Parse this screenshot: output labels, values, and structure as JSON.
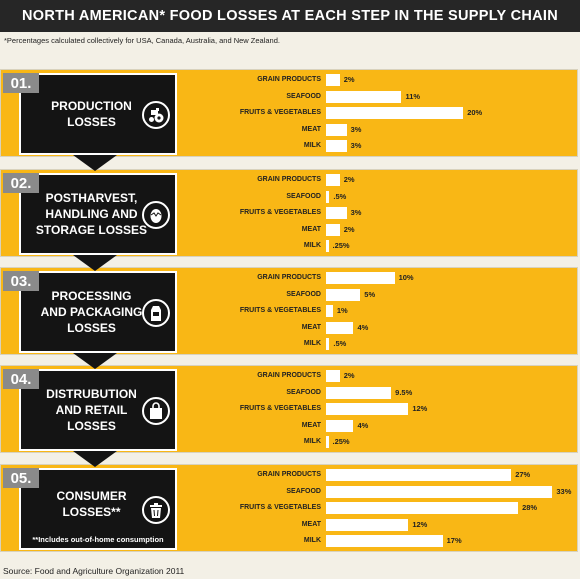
{
  "title": "NORTH AMERICAN* FOOD LOSSES AT EACH STEP IN THE SUPPLY CHAIN",
  "footnote": "*Percentages calculated collectively for USA, Canada, Australia, and New Zealand.",
  "source": "Source: Food and Agriculture Organization 2011",
  "colors": {
    "panel": "#f9b715",
    "box": "#141414",
    "bar": "#ffffff",
    "header": "#262626",
    "number_box": "#8a8a8a"
  },
  "stages": [
    {
      "number": "01.",
      "title": "PRODUCTION\nLOSSES",
      "note": "",
      "icon": "tractor-icon"
    },
    {
      "number": "02.",
      "title": "POSTHARVEST,\nHANDLING AND\nSTORAGE LOSSES",
      "note": "",
      "icon": "egg-icon"
    },
    {
      "number": "03.",
      "title": "PROCESSING\nAND PACKAGING\nLOSSES",
      "note": "",
      "icon": "milk-carton-icon"
    },
    {
      "number": "04.",
      "title": "DISTRUBUTION\nAND RETAIL\nLOSSES",
      "note": "",
      "icon": "shopping-bag-icon"
    },
    {
      "number": "05.",
      "title": "CONSUMER\nLOSSES**",
      "note": "**Includes out-of-home consumption",
      "icon": "trash-can-icon"
    }
  ],
  "chart_data": [
    {
      "type": "bar",
      "title": "PRODUCTION LOSSES",
      "categories": [
        "GRAIN PRODUCTS",
        "SEAFOOD",
        "FRUITS & VEGETABLES",
        "MEAT",
        "MILK"
      ],
      "values": [
        2,
        11,
        20,
        3,
        3
      ],
      "value_labels": [
        "2%",
        "11%",
        "20%",
        "3%",
        "3%"
      ],
      "unit": "%",
      "xlim": [
        0,
        33
      ]
    },
    {
      "type": "bar",
      "title": "POSTHARVEST, HANDLING AND STORAGE LOSSES",
      "categories": [
        "GRAIN PRODUCTS",
        "SEAFOOD",
        "FRUITS & VEGETABLES",
        "MEAT",
        "MILK"
      ],
      "values": [
        2,
        0.5,
        3,
        2,
        0.25
      ],
      "value_labels": [
        "2%",
        ".5%",
        "3%",
        "2%",
        ".25%"
      ],
      "unit": "%",
      "xlim": [
        0,
        33
      ]
    },
    {
      "type": "bar",
      "title": "PROCESSING AND PACKAGING LOSSES",
      "categories": [
        "GRAIN PRODUCTS",
        "SEAFOOD",
        "FRUITS & VEGETABLES",
        "MEAT",
        "MILK"
      ],
      "values": [
        10,
        5,
        1,
        4,
        0.5
      ],
      "value_labels": [
        "10%",
        "5%",
        "1%",
        "4%",
        ".5%"
      ],
      "unit": "%",
      "xlim": [
        0,
        33
      ]
    },
    {
      "type": "bar",
      "title": "DISTRUBUTION AND RETAIL LOSSES",
      "categories": [
        "GRAIN PRODUCTS",
        "SEAFOOD",
        "FRUITS & VEGETABLES",
        "MEAT",
        "MILK"
      ],
      "values": [
        2,
        9.5,
        12,
        4,
        0.25
      ],
      "value_labels": [
        "2%",
        "9.5%",
        "12%",
        "4%",
        ".25%"
      ],
      "unit": "%",
      "xlim": [
        0,
        33
      ]
    },
    {
      "type": "bar",
      "title": "CONSUMER LOSSES**",
      "categories": [
        "GRAIN PRODUCTS",
        "SEAFOOD",
        "FRUITS & VEGETABLES",
        "MEAT",
        "MILK"
      ],
      "values": [
        27,
        33,
        28,
        12,
        17
      ],
      "value_labels": [
        "27%",
        "33%",
        "28%",
        "12%",
        "17%"
      ],
      "unit": "%",
      "xlim": [
        0,
        33
      ]
    }
  ]
}
